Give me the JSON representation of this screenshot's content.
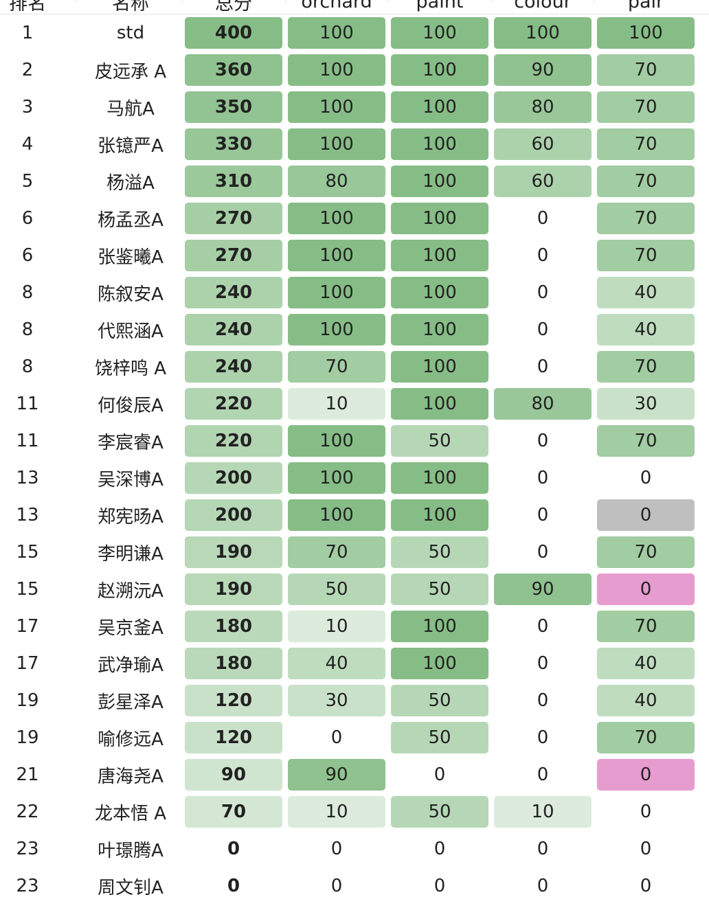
{
  "columns": {
    "rank": "排名",
    "name": "名称",
    "total": "总分",
    "orchard": "orchard",
    "paint": "paint",
    "colour": "colour",
    "pair": "pair"
  },
  "colors": {
    "text": "#222222",
    "gray_cell": "#bfbfbf",
    "pink_cell": "#e79ccf",
    "green_base": "#68ad68"
  },
  "rows": [
    {
      "rank": "1",
      "name": "std",
      "total": "400",
      "orchard": "100",
      "paint": "100",
      "colour": "100",
      "pair": "100"
    },
    {
      "rank": "2",
      "name": "皮远承 A",
      "total": "360",
      "orchard": "100",
      "paint": "100",
      "colour": "90",
      "pair": "70"
    },
    {
      "rank": "3",
      "name": "马航A",
      "total": "350",
      "orchard": "100",
      "paint": "100",
      "colour": "80",
      "pair": "70"
    },
    {
      "rank": "4",
      "name": "张镱严A",
      "total": "330",
      "orchard": "100",
      "paint": "100",
      "colour": "60",
      "pair": "70"
    },
    {
      "rank": "5",
      "name": "杨溢A",
      "total": "310",
      "orchard": "80",
      "paint": "100",
      "colour": "60",
      "pair": "70"
    },
    {
      "rank": "6",
      "name": "杨孟丞A",
      "total": "270",
      "orchard": "100",
      "paint": "100",
      "colour": "0",
      "pair": "70"
    },
    {
      "rank": "6",
      "name": "张鉴曦A",
      "total": "270",
      "orchard": "100",
      "paint": "100",
      "colour": "0",
      "pair": "70"
    },
    {
      "rank": "8",
      "name": "陈叙安A",
      "total": "240",
      "orchard": "100",
      "paint": "100",
      "colour": "0",
      "pair": "40"
    },
    {
      "rank": "8",
      "name": "代熙涵A",
      "total": "240",
      "orchard": "100",
      "paint": "100",
      "colour": "0",
      "pair": "40"
    },
    {
      "rank": "8",
      "name": "饶梓鸣 A",
      "total": "240",
      "orchard": "70",
      "paint": "100",
      "colour": "0",
      "pair": "70"
    },
    {
      "rank": "11",
      "name": "何俊辰A",
      "total": "220",
      "orchard": "10",
      "paint": "100",
      "colour": "80",
      "pair": "30"
    },
    {
      "rank": "11",
      "name": "李宸睿A",
      "total": "220",
      "orchard": "100",
      "paint": "50",
      "colour": "0",
      "pair": "70"
    },
    {
      "rank": "13",
      "name": "吴深博A",
      "total": "200",
      "orchard": "100",
      "paint": "100",
      "colour": "0",
      "pair": "0"
    },
    {
      "rank": "13",
      "name": "郑宪旸A",
      "total": "200",
      "orchard": "100",
      "paint": "100",
      "colour": "0",
      "pair": "0",
      "pair_mark": "gray"
    },
    {
      "rank": "15",
      "name": "李明谦A",
      "total": "190",
      "orchard": "70",
      "paint": "50",
      "colour": "0",
      "pair": "70"
    },
    {
      "rank": "15",
      "name": "赵溯沅A",
      "total": "190",
      "orchard": "50",
      "paint": "50",
      "colour": "90",
      "pair": "0",
      "pair_mark": "pink"
    },
    {
      "rank": "17",
      "name": "吴京釜A",
      "total": "180",
      "orchard": "10",
      "paint": "100",
      "colour": "0",
      "pair": "70"
    },
    {
      "rank": "17",
      "name": "武净瑜A",
      "total": "180",
      "orchard": "40",
      "paint": "100",
      "colour": "0",
      "pair": "40"
    },
    {
      "rank": "19",
      "name": "彭星泽A",
      "total": "120",
      "orchard": "30",
      "paint": "50",
      "colour": "0",
      "pair": "40"
    },
    {
      "rank": "19",
      "name": "喻修远A",
      "total": "120",
      "orchard": "0",
      "paint": "50",
      "colour": "0",
      "pair": "70"
    },
    {
      "rank": "21",
      "name": "唐海尧A",
      "total": "90",
      "orchard": "90",
      "paint": "0",
      "colour": "0",
      "pair": "0",
      "pair_mark": "pink"
    },
    {
      "rank": "22",
      "name": "龙本悟 A",
      "total": "70",
      "orchard": "10",
      "paint": "50",
      "colour": "10",
      "pair": "0"
    },
    {
      "rank": "23",
      "name": "叶璟腾A",
      "total": "0",
      "orchard": "0",
      "paint": "0",
      "colour": "0",
      "pair": "0"
    },
    {
      "rank": "23",
      "name": "周文钊A",
      "total": "0",
      "orchard": "0",
      "paint": "0",
      "colour": "0",
      "pair": "0"
    }
  ]
}
